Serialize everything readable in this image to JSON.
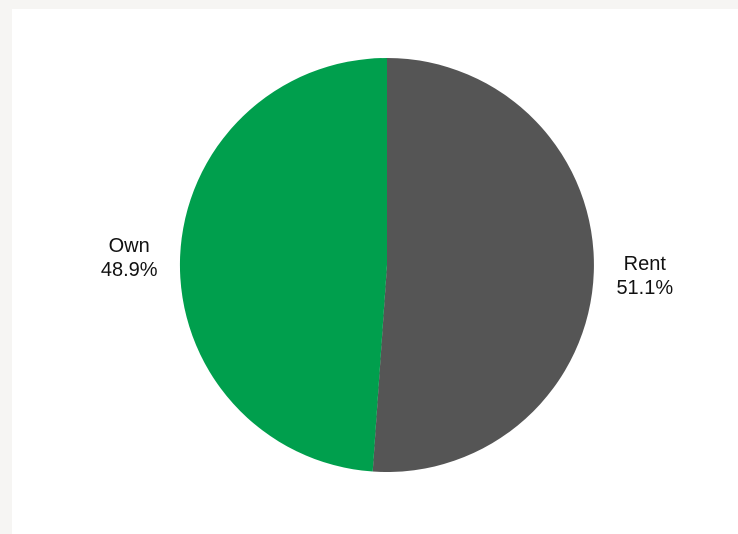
{
  "chart_data": {
    "type": "pie",
    "categories": [
      "Rent",
      "Own"
    ],
    "values": [
      51.1,
      48.9
    ],
    "value_labels": [
      "51.1%",
      "48.9%"
    ],
    "colors": [
      "#555555",
      "#009f4d"
    ],
    "title": "",
    "legend": "none"
  }
}
